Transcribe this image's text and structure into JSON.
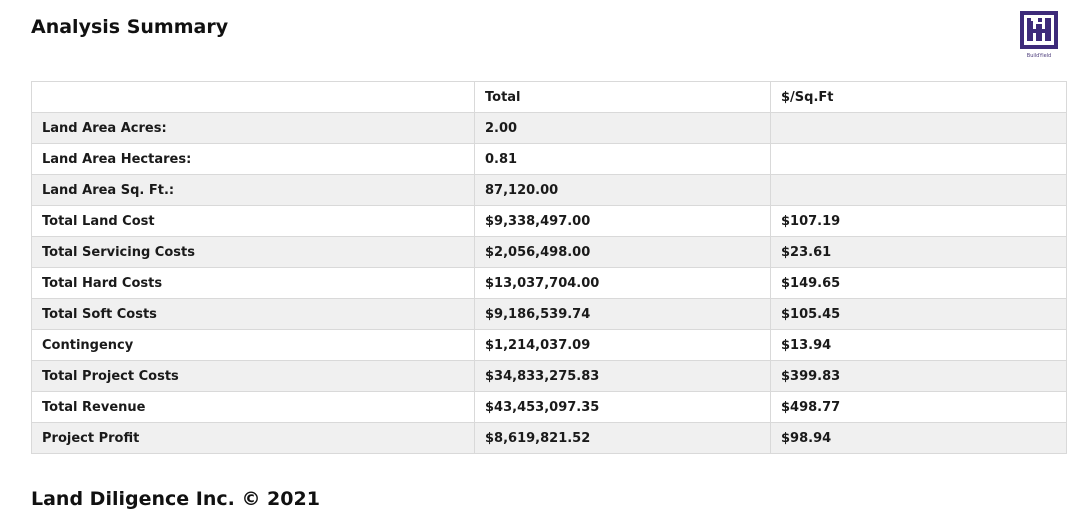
{
  "header": {
    "title": "Analysis Summary",
    "logo_text": "BuildYield"
  },
  "colors": {
    "logo": "#3d2a7a",
    "row_shade": "#f0f0f0",
    "border": "#d9d9d9"
  },
  "table": {
    "headers": [
      "",
      "Total",
      "$/Sq.Ft"
    ],
    "rows": [
      {
        "label": "Land Area Acres:",
        "total": "2.00",
        "per_sqft": ""
      },
      {
        "label": "Land Area Hectares:",
        "total": "0.81",
        "per_sqft": ""
      },
      {
        "label": "Land Area Sq. Ft.:",
        "total": "87,120.00",
        "per_sqft": ""
      },
      {
        "label": "Total Land Cost",
        "total": "$9,338,497.00",
        "per_sqft": "$107.19"
      },
      {
        "label": "Total Servicing Costs",
        "total": "$2,056,498.00",
        "per_sqft": "$23.61"
      },
      {
        "label": "Total Hard Costs",
        "total": "$13,037,704.00",
        "per_sqft": "$149.65"
      },
      {
        "label": "Total Soft Costs",
        "total": "$9,186,539.74",
        "per_sqft": "$105.45"
      },
      {
        "label": "Contingency",
        "total": "$1,214,037.09",
        "per_sqft": "$13.94"
      },
      {
        "label": "Total Project Costs",
        "total": "$34,833,275.83",
        "per_sqft": "$399.83"
      },
      {
        "label": "Total Revenue",
        "total": "$43,453,097.35",
        "per_sqft": "$498.77"
      },
      {
        "label": "Project Profit",
        "total": "$8,619,821.52",
        "per_sqft": "$98.94"
      }
    ]
  },
  "footer": {
    "text": "Land Diligence Inc. © 2021"
  }
}
